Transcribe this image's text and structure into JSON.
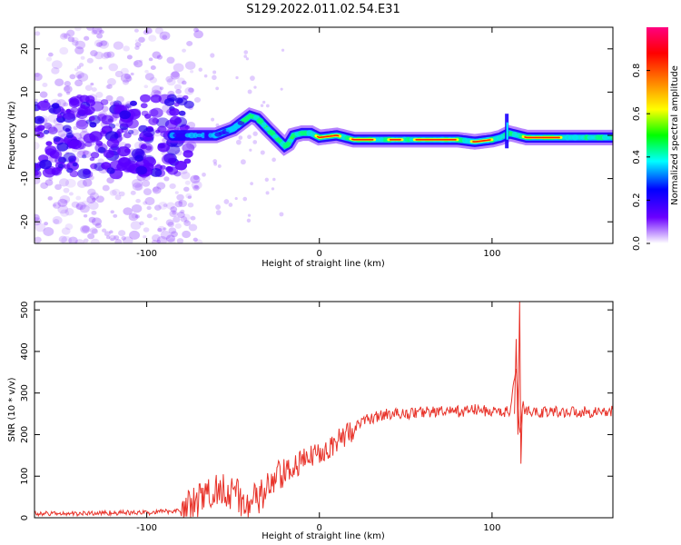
{
  "title": "S129.2022.011.02.54.E31",
  "chart_data": [
    {
      "type": "heatmap",
      "xlabel": "Height of straight line (km)",
      "ylabel": "Frequency (Hz)",
      "xlim": [
        -165,
        170
      ],
      "ylim": [
        -25,
        25
      ],
      "x_ticks": [
        -100,
        0,
        100
      ],
      "y_ticks": [
        -20,
        -10,
        0,
        10,
        20
      ],
      "ridge": {
        "x": [
          -80,
          -70,
          -60,
          -50,
          -45,
          -40,
          -36,
          -30,
          -25,
          -20,
          -18,
          -15,
          -10,
          -5,
          0,
          10,
          20,
          40,
          60,
          80,
          90,
          100,
          105,
          110,
          120,
          140,
          170
        ],
        "y": [
          0,
          0,
          0,
          1.5,
          3,
          4.5,
          4,
          1.5,
          -0.5,
          -2.5,
          -2,
          0,
          0.5,
          0.5,
          -0.5,
          0,
          -1,
          -1,
          -1,
          -1,
          -1.5,
          -1,
          -0.5,
          0.5,
          -0.5,
          -0.5,
          -0.5
        ]
      },
      "colorbar": {
        "label": "Normalized spectral amplitude",
        "range": [
          0,
          1
        ],
        "ticks": [
          "0.0",
          "0.2",
          "0.4",
          "0.6",
          "0.8"
        ],
        "colors": [
          "#ffffff",
          "#6b00ff",
          "#0000ff",
          "#00ffff",
          "#00ff00",
          "#ffff00",
          "#ff8000",
          "#ff0000",
          "#ff0080"
        ]
      }
    },
    {
      "type": "line",
      "xlabel": "Height of straight line (km)",
      "ylabel": "SNR (10 * v/v)",
      "xlim": [
        -165,
        170
      ],
      "ylim": [
        0,
        520
      ],
      "x_ticks": [
        -100,
        0,
        100
      ],
      "y_ticks": [
        0,
        100,
        200,
        300,
        400,
        500
      ],
      "color": "#e8332a",
      "series": [
        {
          "x": [
            -165,
            -140,
            -120,
            -100,
            -90,
            -80,
            -75,
            -70,
            -65,
            -60,
            -55,
            -50,
            -45,
            -40,
            -35,
            -30,
            -25,
            -20,
            -15,
            -10,
            -5,
            0,
            5,
            10,
            15,
            20,
            25,
            30,
            40,
            50,
            60,
            70,
            80,
            90,
            100,
            105,
            110,
            112,
            114,
            116,
            118,
            120,
            130,
            140,
            150,
            160,
            170
          ],
          "y": [
            10,
            10,
            12,
            12,
            15,
            18,
            25,
            40,
            55,
            65,
            75,
            60,
            40,
            35,
            45,
            70,
            90,
            105,
            120,
            135,
            145,
            160,
            170,
            180,
            200,
            215,
            230,
            240,
            250,
            250,
            255,
            255,
            255,
            260,
            255,
            255,
            255,
            300,
            350,
            200,
            270,
            255,
            255,
            255,
            255,
            255,
            255
          ]
        }
      ],
      "annotations": [
        {
          "x": 114,
          "y": 430,
          "note": "spike"
        },
        {
          "x": 116,
          "y": 520,
          "note": "peak"
        },
        {
          "x": 116,
          "y": 130,
          "note": "dip"
        }
      ]
    }
  ]
}
